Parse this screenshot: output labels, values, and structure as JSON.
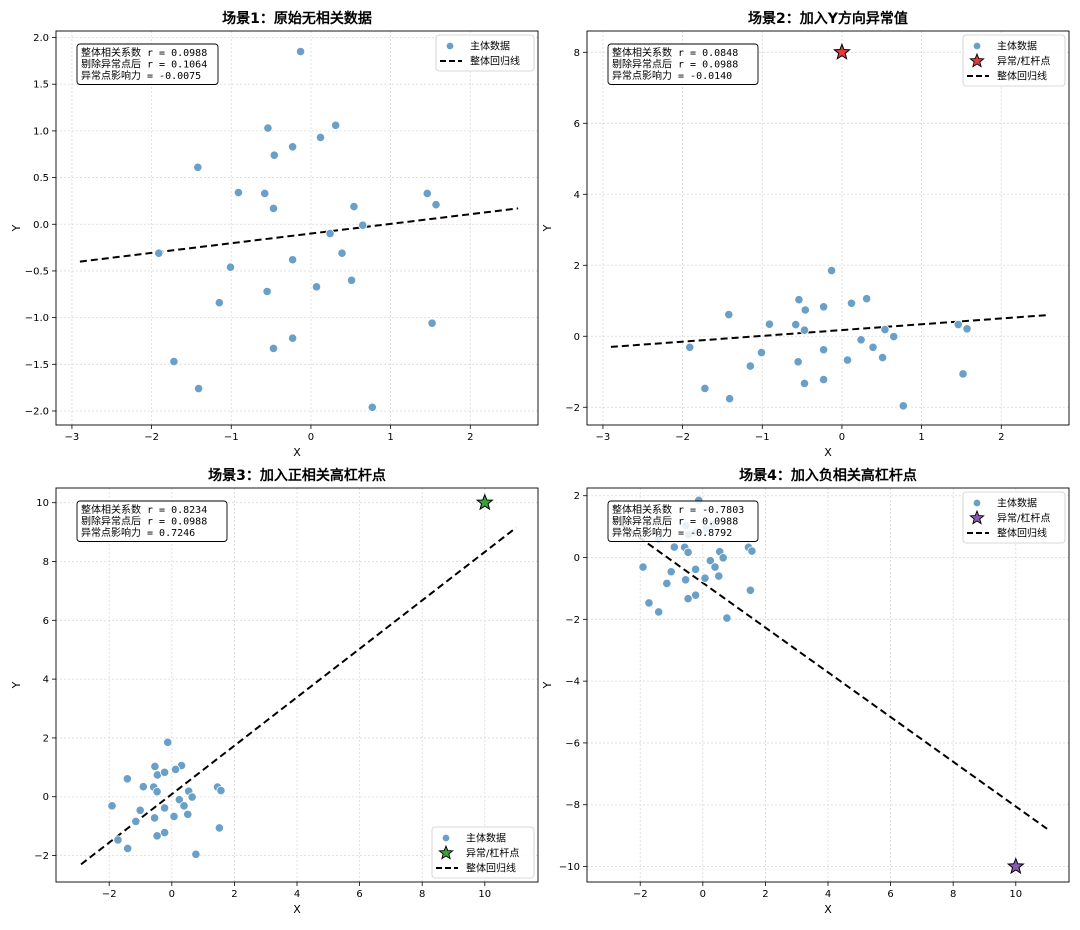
{
  "colors": {
    "main_point": "#6a9fc8",
    "main_edge": "#ffffff",
    "regression": "#000000",
    "outlier_red": "#e23b3b",
    "outlier_green": "#3aa23a",
    "outlier_purple": "#8a5ab0",
    "grid": "#d9d9d9"
  },
  "chart_data": [
    {
      "type": "scatter",
      "title": "场景1：原始无相关数据",
      "xlabel": "X",
      "ylabel": "Y",
      "xlim": [
        -3.2,
        2.85
      ],
      "ylim": [
        -2.15,
        2.07
      ],
      "xticks": [
        -3,
        -2,
        -1,
        0,
        1,
        2
      ],
      "yticks": [
        -2.0,
        -1.5,
        -1.0,
        -0.5,
        0.0,
        0.5,
        1.0,
        1.5,
        2.0
      ],
      "ytick_labels": [
        "−2.0",
        "−1.5",
        "−1.0",
        "−0.5",
        "0.0",
        "0.5",
        "1.0",
        "1.5",
        "2.0"
      ],
      "xtick_labels": [
        "−3",
        "−2",
        "−1",
        "0",
        "1",
        "2"
      ],
      "grid": true,
      "legend_position": "top-right",
      "stats_lines": [
        "整体相关系数 r = 0.0988",
        "剔除异常点后 r = 0.1064",
        "异常点影响力 = -0.0075"
      ],
      "main_series": {
        "name": "主体数据",
        "x": [
          -0.13,
          0.31,
          -0.54,
          0.12,
          -0.46,
          -0.23,
          -1.42,
          -0.91,
          -0.58,
          -0.47,
          1.46,
          1.57,
          0.54,
          0.65,
          0.24,
          -1.91,
          -0.23,
          0.39,
          -1.01,
          0.07,
          0.51,
          -0.55,
          -1.15,
          1.52,
          -0.23,
          -0.47,
          -1.72,
          -1.41,
          0.77
        ],
        "y": [
          1.85,
          1.06,
          1.03,
          0.93,
          0.74,
          0.83,
          0.61,
          0.34,
          0.33,
          0.17,
          0.33,
          0.21,
          0.19,
          -0.01,
          -0.1,
          -0.31,
          -0.38,
          -0.31,
          -0.46,
          -0.67,
          -0.6,
          -0.72,
          -0.84,
          -1.06,
          -1.22,
          -1.33,
          -1.47,
          -1.76,
          -1.96
        ]
      },
      "outlier": null,
      "regression": {
        "name": "整体回归线",
        "x_range": [
          -2.9,
          2.6
        ],
        "y_range": [
          -0.4,
          0.17
        ]
      }
    },
    {
      "type": "scatter",
      "title": "场景2：加入Y方向异常值",
      "xlabel": "X",
      "ylabel": "Y",
      "xlim": [
        -3.2,
        2.85
      ],
      "ylim": [
        -2.5,
        8.6
      ],
      "xticks": [
        -3,
        -2,
        -1,
        0,
        1,
        2
      ],
      "xtick_labels": [
        "−3",
        "−2",
        "−1",
        "0",
        "1",
        "2"
      ],
      "yticks": [
        -2,
        0,
        2,
        4,
        6,
        8
      ],
      "ytick_labels": [
        "−2",
        "0",
        "2",
        "4",
        "6",
        "8"
      ],
      "grid": true,
      "legend_position": "top-right",
      "stats_lines": [
        "整体相关系数 r = 0.0848",
        "剔除异常点后 r = 0.0988",
        "异常点影响力 = -0.0140"
      ],
      "main_series": {
        "name": "主体数据",
        "x": [
          -0.13,
          0.31,
          -0.54,
          0.12,
          -0.46,
          -0.23,
          -1.42,
          -0.91,
          -0.58,
          -0.47,
          1.46,
          1.57,
          0.54,
          0.65,
          0.24,
          -1.91,
          -0.23,
          0.39,
          -1.01,
          0.07,
          0.51,
          -0.55,
          -1.15,
          1.52,
          -0.23,
          -0.47,
          -1.72,
          -1.41,
          0.77
        ],
        "y": [
          1.85,
          1.06,
          1.03,
          0.93,
          0.74,
          0.83,
          0.61,
          0.34,
          0.33,
          0.17,
          0.33,
          0.21,
          0.19,
          -0.01,
          -0.1,
          -0.31,
          -0.38,
          -0.31,
          -0.46,
          -0.67,
          -0.6,
          -0.72,
          -0.84,
          -1.06,
          -1.22,
          -1.33,
          -1.47,
          -1.76,
          -1.96
        ]
      },
      "outlier": {
        "name": "异常/杠杆点",
        "x": 0.0,
        "y": 8.0,
        "color_key": "outlier_red"
      },
      "regression": {
        "name": "整体回归线",
        "x_range": [
          -2.9,
          2.6
        ],
        "y_range": [
          -0.3,
          0.6
        ]
      }
    },
    {
      "type": "scatter",
      "title": "场景3：加入正相关高杠杆点",
      "xlabel": "X",
      "ylabel": "Y",
      "xlim": [
        -3.7,
        11.7
      ],
      "ylim": [
        -2.9,
        10.5
      ],
      "xticks": [
        -2,
        0,
        2,
        4,
        6,
        8,
        10
      ],
      "xtick_labels": [
        "−2",
        "0",
        "2",
        "4",
        "6",
        "8",
        "10"
      ],
      "yticks": [
        -2,
        0,
        2,
        4,
        6,
        8,
        10
      ],
      "ytick_labels": [
        "−2",
        "0",
        "2",
        "4",
        "6",
        "8",
        "10"
      ],
      "grid": true,
      "legend_position": "bottom-right",
      "stats_lines": [
        "整体相关系数 r = 0.8234",
        "剔除异常点后 r = 0.0988",
        "异常点影响力 = 0.7246"
      ],
      "main_series": {
        "name": "主体数据",
        "x": [
          -0.13,
          0.31,
          -0.54,
          0.12,
          -0.46,
          -0.23,
          -1.42,
          -0.91,
          -0.58,
          -0.47,
          1.46,
          1.57,
          0.54,
          0.65,
          0.24,
          -1.91,
          -0.23,
          0.39,
          -1.01,
          0.07,
          0.51,
          -0.55,
          -1.15,
          1.52,
          -0.23,
          -0.47,
          -1.72,
          -1.41,
          0.77
        ],
        "y": [
          1.85,
          1.06,
          1.03,
          0.93,
          0.74,
          0.83,
          0.61,
          0.34,
          0.33,
          0.17,
          0.33,
          0.21,
          0.19,
          -0.01,
          -0.1,
          -0.31,
          -0.38,
          -0.31,
          -0.46,
          -0.67,
          -0.6,
          -0.72,
          -0.84,
          -1.06,
          -1.22,
          -1.33,
          -1.47,
          -1.76,
          -1.96
        ]
      },
      "outlier": {
        "name": "异常/杠杆点",
        "x": 10.0,
        "y": 10.0,
        "color_key": "outlier_green"
      },
      "regression": {
        "name": "整体回归线",
        "x_range": [
          -2.9,
          11.0
        ],
        "y_range": [
          -2.3,
          9.15
        ]
      }
    },
    {
      "type": "scatter",
      "title": "场景4：加入负相关高杠杆点",
      "xlabel": "X",
      "ylabel": "Y",
      "xlim": [
        -3.7,
        11.7
      ],
      "ylim": [
        -10.5,
        2.25
      ],
      "xticks": [
        -2,
        0,
        2,
        4,
        6,
        8,
        10
      ],
      "xtick_labels": [
        "−2",
        "0",
        "2",
        "4",
        "6",
        "8",
        "10"
      ],
      "yticks": [
        -10,
        -8,
        -6,
        -4,
        -2,
        0,
        2
      ],
      "ytick_labels": [
        "−10",
        "−8",
        "−6",
        "−4",
        "−2",
        "0",
        "2"
      ],
      "grid": true,
      "legend_position": "top-right",
      "stats_lines": [
        "整体相关系数 r = -0.7803",
        "剔除异常点后 r = 0.0988",
        "异常点影响力 = -0.8792"
      ],
      "main_series": {
        "name": "主体数据",
        "x": [
          -0.13,
          0.31,
          -0.54,
          0.12,
          -0.46,
          -0.23,
          -1.42,
          -0.91,
          -0.58,
          -0.47,
          1.46,
          1.57,
          0.54,
          0.65,
          0.24,
          -1.91,
          -0.23,
          0.39,
          -1.01,
          0.07,
          0.51,
          -0.55,
          -1.15,
          1.52,
          -0.23,
          -0.47,
          -1.72,
          -1.41,
          0.77
        ],
        "y": [
          1.85,
          1.06,
          1.03,
          0.93,
          0.74,
          0.83,
          0.61,
          0.34,
          0.33,
          0.17,
          0.33,
          0.21,
          0.19,
          -0.01,
          -0.1,
          -0.31,
          -0.38,
          -0.31,
          -0.46,
          -0.67,
          -0.6,
          -0.72,
          -0.84,
          -1.06,
          -1.22,
          -1.33,
          -1.47,
          -1.76,
          -1.96
        ]
      },
      "outlier": {
        "name": "异常/杠杆点",
        "x": 10.0,
        "y": -10.0,
        "color_key": "outlier_purple"
      },
      "regression": {
        "name": "整体回归线",
        "x_range": [
          -2.9,
          11.0
        ],
        "y_range": [
          1.28,
          -8.78
        ]
      }
    }
  ]
}
